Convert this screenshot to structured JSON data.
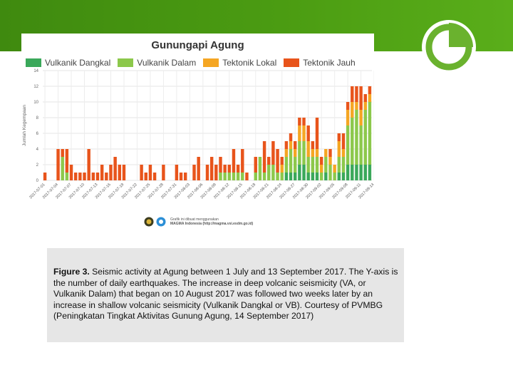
{
  "slide": {
    "caption_label": "Figure 3.",
    "caption_text": " Seismic activity at Agung between 1 July and 13 September 2017. The Y-axis is the number of daily earthquakes. The increase in deep volcanic seismicity (VA, or Vulkanik Dalam) that began on 10 August 2017 was followed two weeks later by an increase in shallow volcanic seismicity (Vulkanik Dangkal or VB). Courtesy of PVMBG (Peningkatan Tingkat Aktivitas Gunung Agung, 14 September 2017)",
    "credit_line1": "Grafik ini dibuat menggunakan",
    "credit_line2": "MAGMA Indonesia (http://magma.vsi.esdm.go.id)"
  },
  "chart_data": {
    "type": "bar",
    "stacked": true,
    "title": "Gunungapi Agung",
    "ylabel": "Jumlah Kegempaan",
    "xlabel": "",
    "ylim": [
      0,
      14
    ],
    "yticks": [
      0,
      2,
      4,
      6,
      8,
      10,
      12,
      14
    ],
    "grid": true,
    "legend_position": "top-left",
    "categories": [
      "2017-07-01",
      "2017-07-02",
      "2017-07-03",
      "2017-07-04",
      "2017-07-05",
      "2017-07-06",
      "2017-07-07",
      "2017-07-08",
      "2017-07-09",
      "2017-07-10",
      "2017-07-11",
      "2017-07-12",
      "2017-07-13",
      "2017-07-14",
      "2017-07-15",
      "2017-07-16",
      "2017-07-17",
      "2017-07-18",
      "2017-07-19",
      "2017-07-20",
      "2017-07-21",
      "2017-07-22",
      "2017-07-23",
      "2017-07-24",
      "2017-07-25",
      "2017-07-26",
      "2017-07-27",
      "2017-07-28",
      "2017-07-29",
      "2017-07-30",
      "2017-07-31",
      "2017-08-01",
      "2017-08-02",
      "2017-08-03",
      "2017-08-04",
      "2017-08-05",
      "2017-08-06",
      "2017-08-07",
      "2017-08-08",
      "2017-08-09",
      "2017-08-10",
      "2017-08-11",
      "2017-08-12",
      "2017-08-13",
      "2017-08-14",
      "2017-08-15",
      "2017-08-16",
      "2017-08-17",
      "2017-08-18",
      "2017-08-19",
      "2017-08-20",
      "2017-08-21",
      "2017-08-22",
      "2017-08-23",
      "2017-08-24",
      "2017-08-25",
      "2017-08-26",
      "2017-08-27",
      "2017-08-28",
      "2017-08-29",
      "2017-08-30",
      "2017-08-31",
      "2017-09-01",
      "2017-09-02",
      "2017-09-03",
      "2017-09-04",
      "2017-09-05",
      "2017-09-06",
      "2017-09-07",
      "2017-09-08",
      "2017-09-09",
      "2017-09-10",
      "2017-09-11",
      "2017-09-12",
      "2017-09-13"
    ],
    "tick_labels": [
      "2017-07-01",
      "2017-07-04",
      "2017-07-07",
      "2017-07-10",
      "2017-07-13",
      "2017-07-16",
      "2017-07-19",
      "2017-07-22",
      "2017-07-25",
      "2017-07-28",
      "2017-07-31",
      "2017-08-03",
      "2017-08-06",
      "2017-08-09",
      "2017-08-12",
      "2017-08-15",
      "2017-08-18",
      "2017-08-21",
      "2017-08-24",
      "2017-08-27",
      "2017-08-30",
      "2017-09-02",
      "2017-09-05",
      "2017-09-08",
      "2017-09-11",
      "2017-09-14"
    ],
    "series": [
      {
        "name": "Vulkanik Dangkal",
        "color": "#3aa85a",
        "values": [
          0,
          0,
          0,
          0,
          0,
          0,
          0,
          0,
          0,
          0,
          0,
          0,
          0,
          0,
          0,
          0,
          0,
          0,
          0,
          0,
          0,
          0,
          0,
          0,
          0,
          0,
          0,
          0,
          0,
          0,
          0,
          0,
          0,
          0,
          0,
          0,
          0,
          0,
          0,
          0,
          0,
          0,
          0,
          0,
          0,
          0,
          0,
          0,
          0,
          0,
          0,
          0,
          0,
          0,
          0,
          1,
          1,
          1,
          2,
          2,
          1,
          1,
          1,
          0,
          1,
          0,
          0,
          1,
          1,
          2,
          2,
          2,
          2,
          2,
          2
        ]
      },
      {
        "name": "Vulkanik Dalam",
        "color": "#8cc84b",
        "values": [
          0,
          0,
          0,
          0,
          3,
          1,
          0,
          0,
          0,
          0,
          0,
          0,
          0,
          0,
          0,
          0,
          0,
          0,
          0,
          0,
          0,
          0,
          0,
          0,
          0,
          0,
          0,
          0,
          0,
          0,
          0,
          0,
          0,
          0,
          0,
          0,
          0,
          0,
          0,
          0,
          1,
          1,
          1,
          1,
          1,
          1,
          0,
          0,
          1,
          3,
          1,
          2,
          2,
          1,
          1,
          2,
          3,
          2,
          3,
          3,
          2,
          2,
          2,
          1,
          2,
          2,
          1,
          2,
          2,
          5,
          6,
          7,
          5,
          7,
          8
        ]
      },
      {
        "name": "Tektonik Lokal",
        "color": "#f5a623",
        "values": [
          0,
          0,
          0,
          0,
          0,
          0,
          0,
          0,
          0,
          0,
          0,
          0,
          0,
          0,
          0,
          0,
          0,
          0,
          0,
          0,
          0,
          0,
          0,
          0,
          0,
          0,
          0,
          0,
          0,
          0,
          0,
          0,
          0,
          0,
          0,
          0,
          0,
          0,
          0,
          0,
          0,
          0,
          0,
          0,
          0,
          0,
          0,
          0,
          0,
          0,
          0,
          0,
          0,
          0,
          1,
          1,
          1,
          1,
          2,
          2,
          2,
          1,
          1,
          1,
          1,
          1,
          1,
          2,
          1,
          2,
          2,
          1,
          2,
          1,
          1
        ]
      },
      {
        "name": "Tektonik Jauh",
        "color": "#e8541b",
        "values": [
          1,
          0,
          0,
          4,
          1,
          3,
          2,
          1,
          1,
          1,
          4,
          1,
          1,
          2,
          1,
          2,
          3,
          2,
          2,
          0,
          0,
          0,
          2,
          1,
          2,
          1,
          0,
          2,
          0,
          0,
          2,
          1,
          1,
          0,
          2,
          3,
          0,
          2,
          3,
          2,
          2,
          1,
          1,
          3,
          1,
          3,
          1,
          0,
          2,
          0,
          4,
          1,
          3,
          3,
          1,
          1,
          1,
          1,
          1,
          1,
          2,
          1,
          4,
          1,
          0,
          1,
          0,
          1,
          2,
          1,
          2,
          2,
          3,
          1,
          1
        ]
      }
    ]
  }
}
